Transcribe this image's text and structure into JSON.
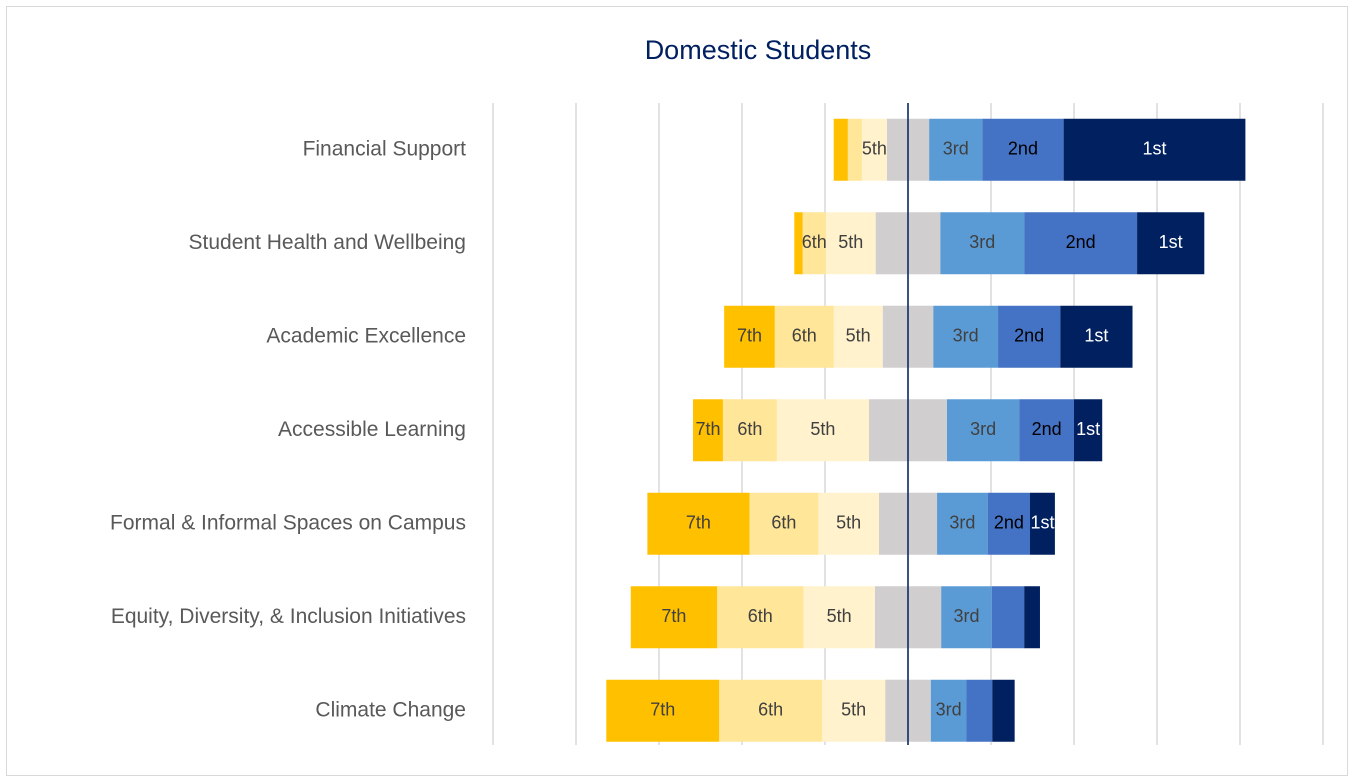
{
  "chart_data": {
    "type": "diverging_bar",
    "title": "Domestic Students",
    "categories": [
      "Financial Support",
      "Student Health and Wellbeing",
      "Academic Excellence",
      "Accessible Learning",
      "Formal & Informal Spaces on Campus",
      "Equity, Diversity, & Inclusion Initiatives",
      "Climate Change"
    ],
    "series": [
      {
        "name": "7th",
        "color": "#ffc000",
        "label_color": "#404040",
        "values": [
          1.7,
          1.0,
          6.1,
          3.6,
          12.3,
          10.4,
          13.6
        ],
        "labeled": [
          false,
          false,
          true,
          true,
          true,
          true,
          true
        ]
      },
      {
        "name": "6th",
        "color": "#ffe699",
        "label_color": "#404040",
        "values": [
          1.7,
          2.8,
          7.1,
          6.5,
          8.3,
          10.4,
          12.4
        ],
        "labeled": [
          false,
          true,
          true,
          true,
          true,
          true,
          true
        ]
      },
      {
        "name": "5th",
        "color": "#fff2cc",
        "label_color": "#404040",
        "values": [
          3.0,
          6.0,
          5.9,
          11.1,
          7.3,
          8.6,
          7.6
        ],
        "labeled": [
          true,
          true,
          true,
          true,
          true,
          true,
          true
        ]
      },
      {
        "color": "#d0cece",
        "values": [
          5.1,
          7.8,
          6.1,
          9.4,
          7.0,
          8.0,
          5.5
        ]
      },
      {
        "name": "3rd",
        "color": "#5b9bd5",
        "label_color": "#404040",
        "values": [
          6.4,
          10.1,
          7.8,
          8.7,
          6.1,
          6.1,
          4.3
        ],
        "labeled": [
          true,
          true,
          true,
          true,
          true,
          true,
          true
        ]
      },
      {
        "name": "2nd",
        "color": "#4472c4",
        "label_color": "#000000",
        "values": [
          9.8,
          13.6,
          7.5,
          6.6,
          5.1,
          3.9,
          3.1
        ],
        "labeled": [
          true,
          true,
          true,
          true,
          true,
          false,
          false
        ]
      },
      {
        "name": "1st",
        "color": "#002060",
        "label_color": "#ffffff",
        "values": [
          21.9,
          8.1,
          8.7,
          3.4,
          3.0,
          1.9,
          2.7
        ],
        "labeled": [
          true,
          true,
          true,
          true,
          true,
          false,
          false
        ]
      }
    ],
    "xlim": [
      -50,
      50
    ],
    "xticks": [
      -50,
      -40,
      -30,
      -20,
      -10,
      0,
      10,
      20,
      30,
      40,
      50
    ],
    "grid": true,
    "zero_line_color": "#002060"
  }
}
